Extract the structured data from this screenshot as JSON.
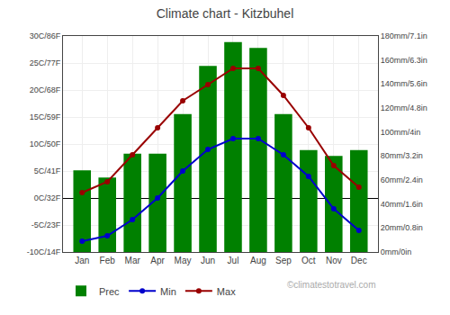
{
  "chart_data": {
    "type": "bar",
    "title": "Climate chart - Kitzbuhel",
    "categories": [
      "Jan",
      "Feb",
      "Mar",
      "Apr",
      "May",
      "Jun",
      "Jul",
      "Aug",
      "Sep",
      "Oct",
      "Nov",
      "Dec"
    ],
    "series": [
      {
        "name": "Prec",
        "type": "bar",
        "axis": "y2",
        "color": "#008000",
        "values": [
          68,
          62,
          82,
          82,
          115,
          155,
          175,
          170,
          115,
          85,
          80,
          85
        ]
      },
      {
        "name": "Min",
        "type": "line",
        "marker": "circle",
        "color": "#0000cc",
        "values": [
          -8,
          -7,
          -4,
          0,
          5,
          9,
          11,
          11,
          8,
          4,
          -2,
          -6
        ]
      },
      {
        "name": "Max",
        "type": "line",
        "marker": "circle",
        "color": "#990000",
        "values": [
          1,
          3,
          8,
          13,
          18,
          21,
          24,
          24,
          19,
          13,
          6,
          2
        ]
      }
    ],
    "ylim": [
      -10,
      30
    ],
    "yticks": [
      {
        "value": -10,
        "label": "-10C/14F"
      },
      {
        "value": -5,
        "label": "-5C/23F"
      },
      {
        "value": 0,
        "label": "0C/32F"
      },
      {
        "value": 5,
        "label": "5C/41F"
      },
      {
        "value": 10,
        "label": "10C/50F"
      },
      {
        "value": 15,
        "label": "15C/59F"
      },
      {
        "value": 20,
        "label": "20C/68F"
      },
      {
        "value": 25,
        "label": "25C/77F"
      },
      {
        "value": 30,
        "label": "30C/86F"
      }
    ],
    "y2lim": [
      0,
      180
    ],
    "y2ticks": [
      {
        "value": 0,
        "label": "0mm/0in"
      },
      {
        "value": 20,
        "label": "20mm/0.8in"
      },
      {
        "value": 40,
        "label": "40mm/1.6in"
      },
      {
        "value": 60,
        "label": "60mm/2.4in"
      },
      {
        "value": 80,
        "label": "80mm/3.2in"
      },
      {
        "value": 100,
        "label": "100mm/4in"
      },
      {
        "value": 120,
        "label": "120mm/4.8in"
      },
      {
        "value": 140,
        "label": "140mm/5.6in"
      },
      {
        "value": 160,
        "label": "160mm/6.3in"
      },
      {
        "value": 180,
        "label": "180mm/7.1in"
      }
    ],
    "grid": true,
    "legend": "bottom",
    "annotations": [
      "©climatestotravel.com"
    ]
  }
}
